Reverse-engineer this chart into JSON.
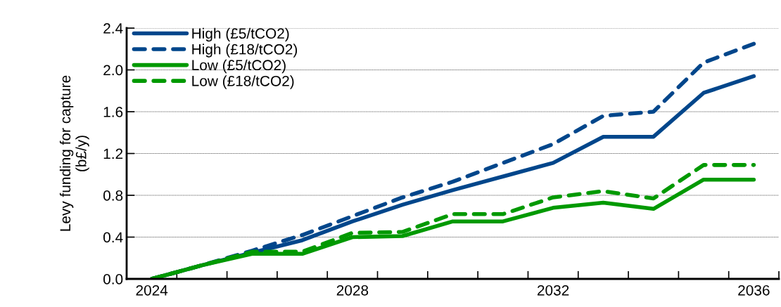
{
  "chart_data": {
    "type": "line",
    "ylabel": "Levy funding for capture\n(b£/y)",
    "categories": [
      "2024",
      null,
      null,
      null,
      "2028",
      null,
      null,
      null,
      "2032",
      null,
      null,
      null,
      "2036"
    ],
    "series": [
      {
        "name": "High (£5/tCO2)",
        "color": "#00468b",
        "line_style": "solid",
        "values": [
          0,
          0.13,
          0.25,
          0.37,
          0.55,
          0.71,
          0.85,
          0.98,
          1.11,
          1.36,
          1.36,
          1.78,
          1.94
        ]
      },
      {
        "name": "High (£18/tCO2)",
        "color": "#00468b",
        "line_style": "dashed",
        "values": [
          0,
          0.13,
          0.27,
          0.42,
          0.6,
          0.78,
          0.93,
          1.11,
          1.29,
          1.56,
          1.6,
          2.07,
          2.25
        ]
      },
      {
        "name": "Low (£5/tCO2)",
        "color": "#009900",
        "line_style": "solid",
        "values": [
          0,
          0.13,
          0.24,
          0.24,
          0.4,
          0.41,
          0.55,
          0.55,
          0.68,
          0.73,
          0.67,
          0.95,
          0.95
        ]
      },
      {
        "name": "Low (£18/tCO2)",
        "color": "#009900",
        "line_style": "dashed",
        "values": [
          0,
          0.13,
          0.26,
          0.26,
          0.44,
          0.45,
          0.62,
          0.62,
          0.78,
          0.84,
          0.77,
          1.09,
          1.09
        ]
      }
    ],
    "ylim": [
      0,
      2.4
    ],
    "yticks": [
      {
        "value": 0,
        "label": "0.0"
      },
      {
        "value": 0.4,
        "label": "0.4"
      },
      {
        "value": 0.8,
        "label": "0.8"
      },
      {
        "value": 1.2,
        "label": "1.2"
      },
      {
        "value": 1.6,
        "label": "1.6"
      },
      {
        "value": 2.0,
        "label": "2.0"
      },
      {
        "value": 2.4,
        "label": "2.4"
      }
    ],
    "grid": "y",
    "legend": "top left",
    "marker": "none"
  }
}
